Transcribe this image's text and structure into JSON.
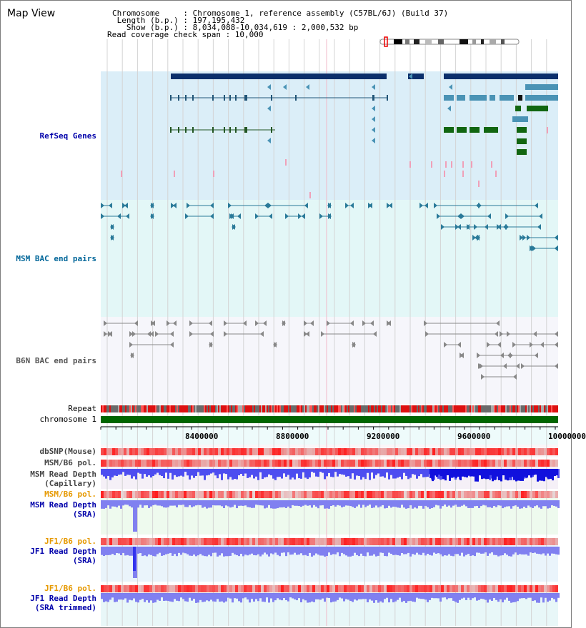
{
  "panel": {
    "title": "Map View"
  },
  "header": {
    "chromosome": "Chromosome     : Chromosome 1, reference assembly (C57BL/6J) (Build 37)",
    "length": " Length (b.p.) : 197,195,432",
    "show": "   Show (b.p.) : 8,034,088-10,034,619 : 2,000,532 bp",
    "coverage": "Read coverage check span : 10,000"
  },
  "tracks": {
    "refseq": "RefSeq Genes",
    "msm_bac": "MSM BAC end pairs",
    "b6n_bac": "B6N BAC end pairs",
    "repeat": "Repeat",
    "chromosome": "chromosome 1",
    "dbsnp": "dbSNP(Mouse)",
    "msm_b6_pol": "MSM/B6 pol.",
    "msm_depth_cap_1": "MSM Read Depth",
    "msm_depth_cap_2": "(Capillary)",
    "msm_b6_pol2": "MSM/B6 pol.",
    "msm_depth_sra_1": "MSM Read Depth",
    "msm_depth_sra_2": "(SRA)",
    "jf1_b6_pol": "JF1/B6 pol.",
    "jf1_depth_sra_1": "JF1 Read Depth",
    "jf1_depth_sra_2": "(SRA)",
    "jf1_b6_pol2": "JF1/B6 pol.",
    "jf1_depth_trim_1": "JF1 Read Depth",
    "jf1_depth_trim_2": "(SRA trimmed)"
  },
  "axis": {
    "ticks": [
      "8400000",
      "8800000",
      "9200000",
      "9600000",
      "10000000"
    ]
  },
  "colors": {
    "refseq_label": "#0000aa",
    "msm_label": "#006699",
    "gray_label": "#333333",
    "orange_label": "#e69900",
    "navy": "#0b2f6b",
    "teal": "#4a93b5",
    "green": "#006600",
    "depth_blue": "#1a1aee",
    "depth_light": "#8080f0"
  }
}
